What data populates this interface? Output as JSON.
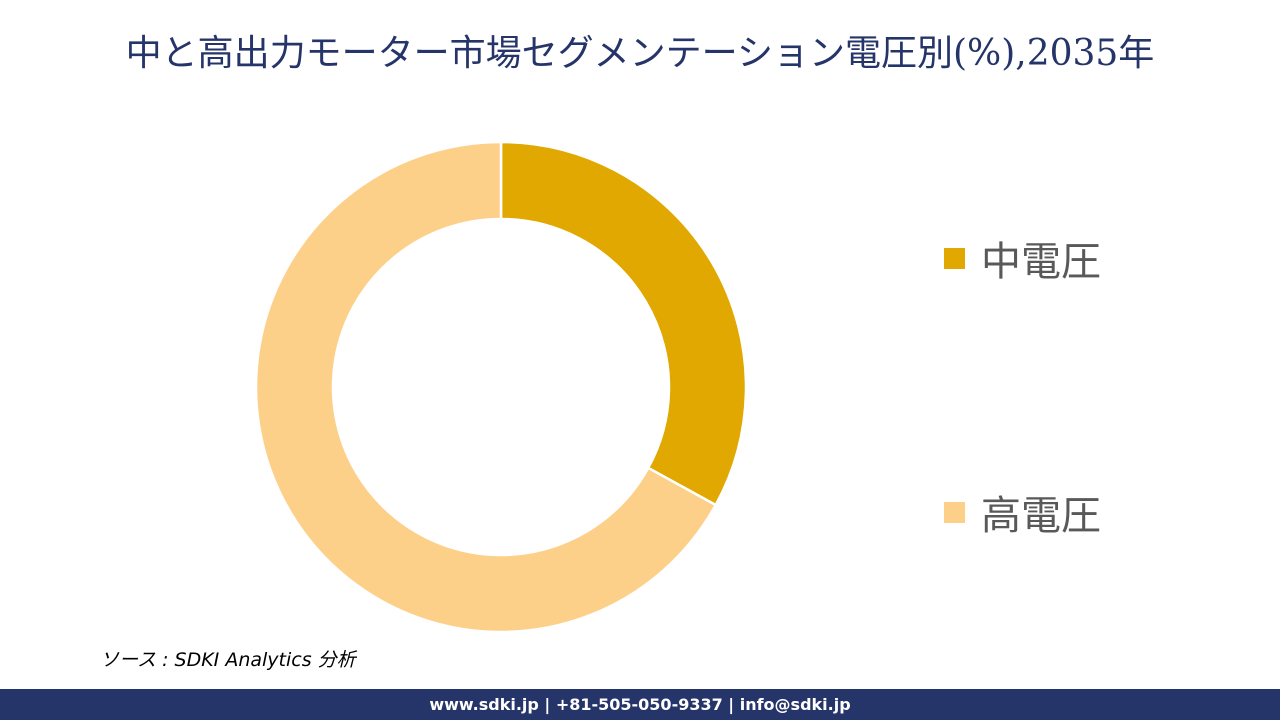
{
  "title": "中と高出力モーター市場セグメンテーション電圧別(%),2035年",
  "chart_data": {
    "type": "pie",
    "subtype": "donut",
    "title": "中と高出力モーター市場セグメンテーション電圧別(%),2035年",
    "categories": [
      "中電圧",
      "高電圧"
    ],
    "values": [
      33,
      67
    ],
    "colors": [
      "#E0A800",
      "#FDD08A"
    ],
    "start_angle_deg": 0,
    "direction": "clockwise",
    "center": [
      501,
      387
    ],
    "outer_radius": 245,
    "inner_radius": 168,
    "legend_position": "right",
    "data_labels": false
  },
  "legend": {
    "items": [
      {
        "label": "中電圧",
        "color": "#E0A800"
      },
      {
        "label": "高電圧",
        "color": "#FDD08A"
      }
    ]
  },
  "source": "ソース : SDKI Analytics  分析",
  "footer": {
    "text": "www.sdki.jp | +81-505-050-9337 | info@sdki.jp",
    "background": "#253469"
  }
}
